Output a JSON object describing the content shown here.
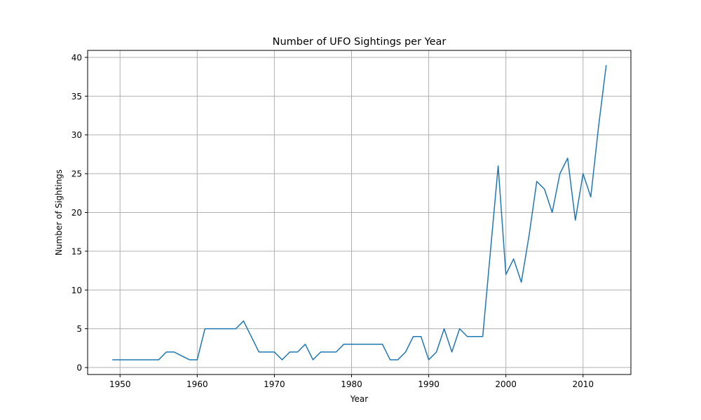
{
  "chart_data": {
    "type": "line",
    "title": "Number of UFO Sightings per Year",
    "xlabel": "Year",
    "ylabel": "Number of Sightings",
    "xlim": [
      1945.8,
      2016.2
    ],
    "ylim": [
      -0.9,
      40.9
    ],
    "xticks": [
      1950,
      1960,
      1970,
      1980,
      1990,
      2000,
      2010
    ],
    "yticks": [
      0,
      5,
      10,
      15,
      20,
      25,
      30,
      35,
      40
    ],
    "grid": true,
    "line_color": "#1f77b4",
    "series": [
      {
        "x": [
          1949,
          1950,
          1951,
          1952,
          1953,
          1954,
          1955,
          1956,
          1957,
          1958,
          1959,
          1960,
          1961,
          1962,
          1963,
          1964,
          1965,
          1966,
          1967,
          1968,
          1969,
          1970,
          1971,
          1972,
          1973,
          1974,
          1975,
          1976,
          1977,
          1978,
          1979,
          1980,
          1981,
          1982,
          1983,
          1984,
          1985,
          1986,
          1987,
          1988,
          1989,
          1990,
          1991,
          1992,
          1993,
          1994,
          1995,
          1996,
          1997,
          1998,
          1999,
          2000,
          2001,
          2002,
          2003,
          2004,
          2005,
          2006,
          2007,
          2008,
          2009,
          2010,
          2011,
          2012,
          2013
        ],
        "values": [
          1,
          1,
          1,
          1,
          1,
          1,
          1,
          2,
          2,
          1.5,
          1,
          1,
          5,
          5,
          5,
          5,
          5,
          6,
          4,
          2,
          2,
          2,
          1,
          2,
          2,
          3,
          1,
          2,
          2,
          2,
          3,
          3,
          3,
          3,
          3,
          3,
          1,
          1,
          2,
          4,
          4,
          1,
          2,
          5,
          2,
          5,
          4,
          4,
          4,
          15,
          26,
          12,
          14,
          11,
          17,
          24,
          23,
          20,
          25,
          27,
          19,
          25,
          22,
          31,
          39
        ]
      }
    ]
  }
}
